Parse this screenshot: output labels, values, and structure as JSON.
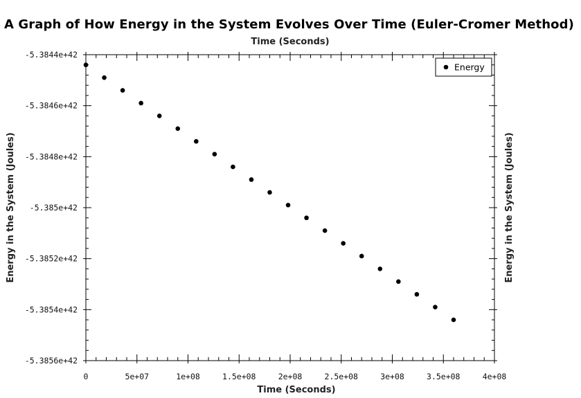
{
  "chart_data": {
    "type": "scatter",
    "title": "A Graph of How Energy in the System Evolves Over Time (Euler-Cromer Method)",
    "xlabel": "Time (Seconds)",
    "x2label": "Time (Seconds)",
    "ylabel": "Energy in the System (Joules)",
    "y2label": "Energy in the System (Joules)",
    "xlim": [
      0,
      400000000
    ],
    "ylim": [
      -5.3856e+42,
      -5.3844e+42
    ],
    "xticks": [
      {
        "value": 0,
        "label": "0"
      },
      {
        "value": 50000000,
        "label": "5e+07"
      },
      {
        "value": 100000000,
        "label": "1e+08"
      },
      {
        "value": 150000000,
        "label": "1.5e+08"
      },
      {
        "value": 200000000,
        "label": "2e+08"
      },
      {
        "value": 250000000,
        "label": "2.5e+08"
      },
      {
        "value": 300000000,
        "label": "3e+08"
      },
      {
        "value": 350000000,
        "label": "3.5e+08"
      },
      {
        "value": 400000000,
        "label": "4e+08"
      }
    ],
    "yticks": [
      {
        "value": -5.3844e+42,
        "label": "-5.3844e+42"
      },
      {
        "value": -5.3846e+42,
        "label": "-5.3846e+42"
      },
      {
        "value": -5.3848e+42,
        "label": "-5.3848e+42"
      },
      {
        "value": -5.385e+42,
        "label": "-5.385e+42"
      },
      {
        "value": -5.3852e+42,
        "label": "-5.3852e+42"
      },
      {
        "value": -5.3854e+42,
        "label": "-5.3854e+42"
      },
      {
        "value": -5.3856e+42,
        "label": "-5.3856e+42"
      }
    ],
    "legend_position": "top-right",
    "grid": false,
    "series": [
      {
        "name": "Energy",
        "color": "#000000",
        "points": [
          {
            "x": 0,
            "y": -5.38444e+42
          },
          {
            "x": 18000000,
            "y": -5.38449e+42
          },
          {
            "x": 36000000,
            "y": -5.38454e+42
          },
          {
            "x": 54000000,
            "y": -5.38459e+42
          },
          {
            "x": 72000000,
            "y": -5.38464e+42
          },
          {
            "x": 90000000,
            "y": -5.38469e+42
          },
          {
            "x": 108000000,
            "y": -5.38474e+42
          },
          {
            "x": 126000000,
            "y": -5.38479e+42
          },
          {
            "x": 144000000,
            "y": -5.38484e+42
          },
          {
            "x": 162000000,
            "y": -5.38489e+42
          },
          {
            "x": 180000000,
            "y": -5.38494e+42
          },
          {
            "x": 198000000,
            "y": -5.38499e+42
          },
          {
            "x": 216000000,
            "y": -5.38504e+42
          },
          {
            "x": 234000000,
            "y": -5.38509e+42
          },
          {
            "x": 252000000,
            "y": -5.38514e+42
          },
          {
            "x": 270000000,
            "y": -5.38519e+42
          },
          {
            "x": 288000000,
            "y": -5.38524e+42
          },
          {
            "x": 306000000,
            "y": -5.38529e+42
          },
          {
            "x": 324000000,
            "y": -5.38534e+42
          },
          {
            "x": 342000000,
            "y": -5.38539e+42
          },
          {
            "x": 360000000,
            "y": -5.38544e+42
          }
        ]
      }
    ]
  }
}
